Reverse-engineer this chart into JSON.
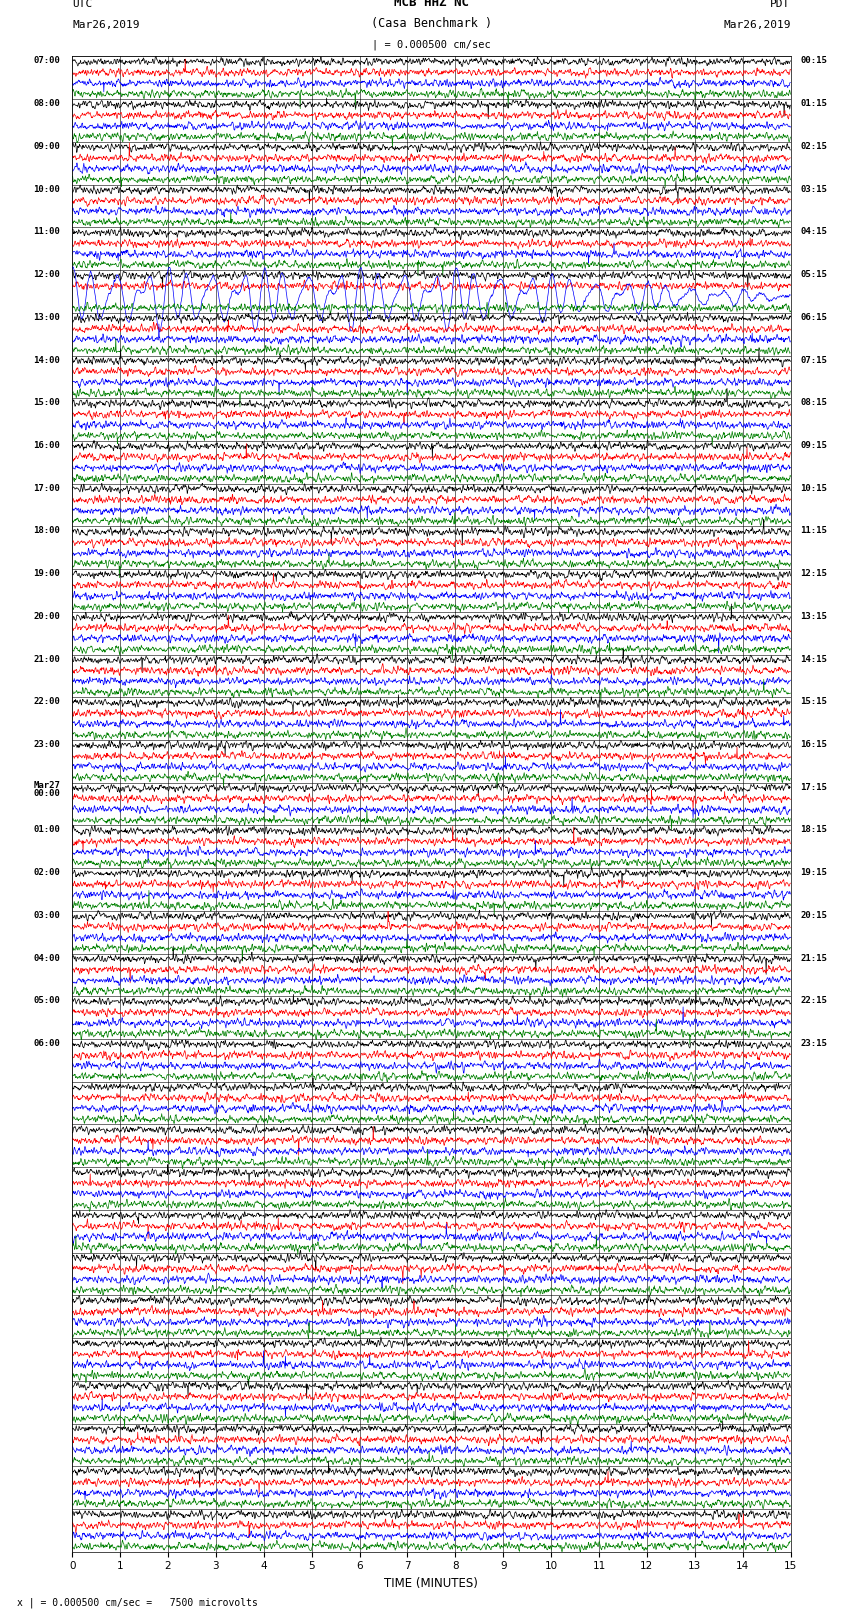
{
  "title_line1": "MCB HHZ NC",
  "title_line2": "(Casa Benchmark )",
  "title_line3": "| = 0.000500 cm/sec",
  "label_left_top": "UTC",
  "label_left_date": "Mar26,2019",
  "label_right_top": "PDT",
  "label_right_date": "Mar26,2019",
  "xlabel": "TIME (MINUTES)",
  "footer": "x | = 0.000500 cm/sec =   7500 microvolts",
  "bg_color": "#ffffff",
  "trace_colors": [
    "black",
    "red",
    "blue",
    "green"
  ],
  "num_rows": 35,
  "traces_per_row": 4,
  "xmin": 0,
  "xmax": 15,
  "xticks": [
    0,
    1,
    2,
    3,
    4,
    5,
    6,
    7,
    8,
    9,
    10,
    11,
    12,
    13,
    14,
    15
  ],
  "left_labels": [
    "07:00",
    "08:00",
    "09:00",
    "10:00",
    "11:00",
    "12:00",
    "13:00",
    "14:00",
    "15:00",
    "16:00",
    "17:00",
    "18:00",
    "19:00",
    "20:00",
    "21:00",
    "22:00",
    "23:00",
    "Mar27\n00:00",
    "01:00",
    "02:00",
    "03:00",
    "04:00",
    "05:00",
    "06:00"
  ],
  "right_labels": [
    "00:15",
    "01:15",
    "02:15",
    "03:15",
    "04:15",
    "05:15",
    "06:15",
    "07:15",
    "08:15",
    "09:15",
    "10:15",
    "11:15",
    "12:15",
    "13:15",
    "14:15",
    "15:15",
    "16:15",
    "17:15",
    "18:15",
    "19:15",
    "20:15",
    "21:15",
    "22:15",
    "23:15"
  ],
  "earthquake_row": 5,
  "earthquake_trace": 2,
  "N_samples": 1800
}
